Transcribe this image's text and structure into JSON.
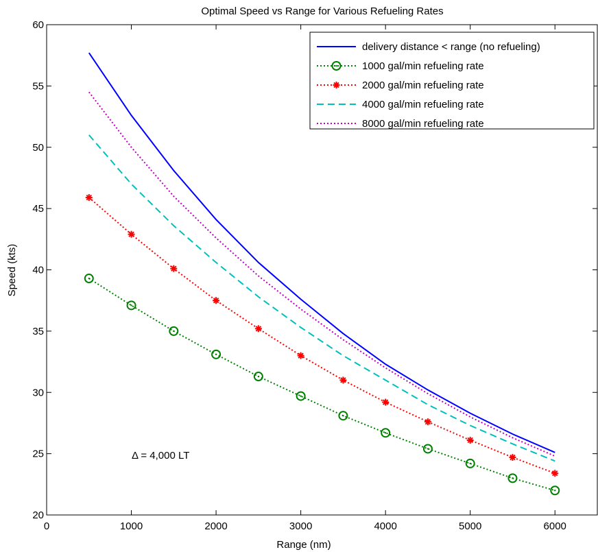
{
  "chart_data": {
    "type": "line",
    "title": "Optimal Speed vs Range for Various Refueling Rates",
    "xlabel": "Range (nm)",
    "ylabel": "Speed (kts)",
    "xlim": [
      0,
      6500
    ],
    "ylim": [
      20,
      60
    ],
    "xticks": [
      0,
      1000,
      2000,
      3000,
      4000,
      5000,
      6000
    ],
    "yticks": [
      20,
      25,
      30,
      35,
      40,
      45,
      50,
      55,
      60
    ],
    "grid": false,
    "legend_position": "top-right",
    "annotation": "Δ = 4,000 LT",
    "series": [
      {
        "name": "delivery distance < range (no refueling)",
        "color": "#0000ff",
        "style": "solid",
        "marker": "none",
        "x": [
          500,
          1000,
          1500,
          2000,
          2500,
          3000,
          3500,
          4000,
          4500,
          5000,
          5500,
          6000
        ],
        "values": [
          57.7,
          52.6,
          48.1,
          44.1,
          40.6,
          37.6,
          34.8,
          32.3,
          30.2,
          28.3,
          26.6,
          25.1
        ]
      },
      {
        "name": "1000 gal/min refueling rate",
        "color": "#008000",
        "style": "dotted",
        "marker": "circle",
        "x": [
          500,
          1000,
          1500,
          2000,
          2500,
          3000,
          3500,
          4000,
          4500,
          5000,
          5500,
          6000
        ],
        "values": [
          39.3,
          37.1,
          35.0,
          33.1,
          31.3,
          29.7,
          28.1,
          26.7,
          25.4,
          24.2,
          23.0,
          22.0
        ]
      },
      {
        "name": "2000 gal/min refueling rate",
        "color": "#ff0000",
        "style": "dotted",
        "marker": "star",
        "x": [
          500,
          1000,
          1500,
          2000,
          2500,
          3000,
          3500,
          4000,
          4500,
          5000,
          5500,
          6000
        ],
        "values": [
          45.9,
          42.9,
          40.1,
          37.5,
          35.2,
          33.0,
          31.0,
          29.2,
          27.6,
          26.1,
          24.7,
          23.4
        ]
      },
      {
        "name": "4000 gal/min refueling rate",
        "color": "#00bfbf",
        "style": "dashed",
        "marker": "none",
        "x": [
          500,
          1000,
          1500,
          2000,
          2500,
          3000,
          3500,
          4000,
          4500,
          5000,
          5500,
          6000
        ],
        "values": [
          51.0,
          47.0,
          43.6,
          40.6,
          37.8,
          35.3,
          33.0,
          31.0,
          29.0,
          27.3,
          25.8,
          24.4
        ]
      },
      {
        "name": "8000 gal/min refueling rate",
        "color": "#bf00bf",
        "style": "dotted",
        "marker": "none",
        "x": [
          500,
          1000,
          1500,
          2000,
          2500,
          3000,
          3500,
          4000,
          4500,
          5000,
          5500,
          6000
        ],
        "values": [
          54.5,
          50.0,
          46.0,
          42.6,
          39.5,
          36.8,
          34.3,
          32.0,
          29.9,
          28.0,
          26.3,
          24.8
        ]
      }
    ]
  }
}
